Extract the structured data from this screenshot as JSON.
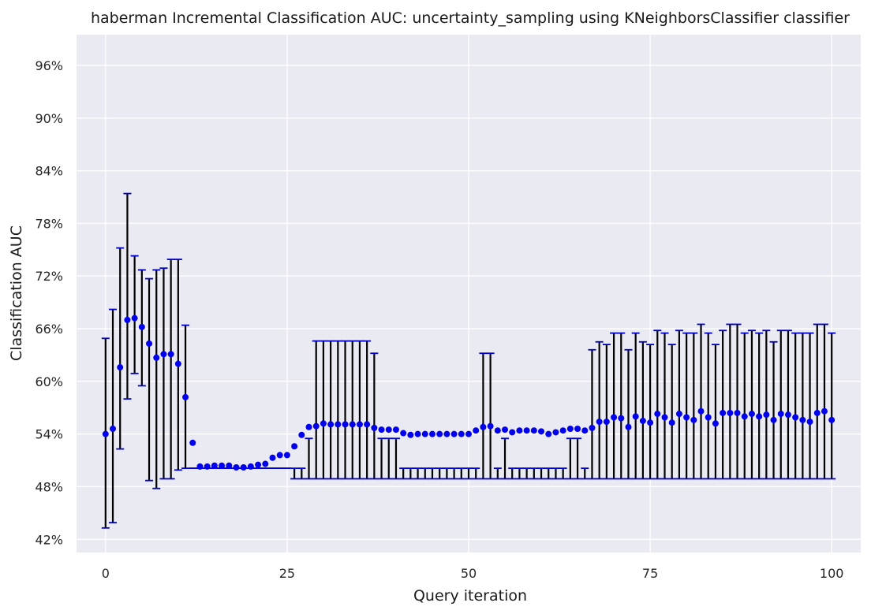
{
  "chart_data": {
    "type": "scatter",
    "title": "haberman Incremental Classification AUC: uncertainty_sampling using KNeighborsClassifier classifier",
    "xlabel": "Query iteration",
    "ylabel": "Classification AUC",
    "xlim": [
      -4,
      104
    ],
    "ylim": [
      40.5,
      99.5
    ],
    "xticks": [
      0,
      25,
      50,
      75,
      100
    ],
    "xtick_labels": [
      "0",
      "25",
      "50",
      "75",
      "100"
    ],
    "yticks": [
      42,
      48,
      54,
      60,
      66,
      72,
      78,
      84,
      90,
      96
    ],
    "ytick_labels": [
      "42%",
      "48%",
      "54%",
      "60%",
      "66%",
      "72%",
      "78%",
      "84%",
      "90%",
      "96%"
    ],
    "grid": true,
    "colors": {
      "background": "#eaeaf2",
      "points": "#0000ee",
      "error_bars": "#000000",
      "caps": "#0000cc"
    },
    "series": [
      {
        "x": [
          0,
          1,
          2,
          3,
          4,
          5,
          6,
          7,
          8,
          9,
          10,
          11,
          12,
          13,
          14,
          15,
          16,
          17,
          18,
          19,
          20,
          21,
          22,
          23,
          24,
          25,
          26,
          27,
          28,
          29,
          30,
          31,
          32,
          33,
          34,
          35,
          36,
          37,
          38,
          39,
          40,
          41,
          42,
          43,
          44,
          45,
          46,
          47,
          48,
          49,
          50,
          51,
          52,
          53,
          54,
          55,
          56,
          57,
          58,
          59,
          60,
          61,
          62,
          63,
          64,
          65,
          66,
          67,
          68,
          69,
          70,
          71,
          72,
          73,
          74,
          75,
          76,
          77,
          78,
          79,
          80,
          81,
          82,
          83,
          84,
          85,
          86,
          87,
          88,
          89,
          90,
          91,
          92,
          93,
          94,
          95,
          96,
          97,
          98,
          99,
          100
        ],
        "y": [
          54.0,
          54.6,
          61.6,
          67.0,
          67.2,
          66.2,
          64.3,
          62.7,
          63.1,
          63.1,
          62.0,
          58.2,
          53.0,
          50.3,
          50.3,
          50.4,
          50.4,
          50.4,
          50.2,
          50.2,
          50.3,
          50.5,
          50.6,
          51.3,
          51.6,
          51.6,
          52.6,
          53.9,
          54.8,
          54.9,
          55.2,
          55.1,
          55.1,
          55.1,
          55.1,
          55.1,
          55.1,
          54.7,
          54.5,
          54.5,
          54.5,
          54.1,
          53.9,
          54.0,
          54.0,
          54.0,
          54.0,
          54.0,
          54.0,
          54.0,
          54.0,
          54.4,
          54.8,
          54.9,
          54.4,
          54.5,
          54.2,
          54.4,
          54.4,
          54.4,
          54.3,
          54.0,
          54.2,
          54.4,
          54.6,
          54.6,
          54.4,
          54.7,
          55.4,
          55.4,
          55.9,
          55.8,
          54.8,
          56.0,
          55.5,
          55.3,
          56.3,
          55.9,
          55.3,
          56.3,
          55.9,
          55.6,
          56.6,
          55.9,
          55.2,
          56.4,
          56.4,
          56.4,
          56.0,
          56.3,
          56.0,
          56.2,
          55.6,
          56.3,
          56.2,
          55.9,
          55.6,
          55.4,
          56.4,
          56.6,
          55.6
        ],
        "y_low": [
          43.3,
          43.9,
          52.3,
          58.0,
          60.9,
          59.5,
          48.7,
          47.8,
          48.9,
          48.9,
          49.9,
          50.1,
          50.1,
          50.1,
          50.1,
          50.1,
          50.1,
          50.1,
          50.1,
          50.1,
          50.1,
          50.1,
          50.1,
          50.1,
          50.1,
          50.1,
          48.9,
          48.9,
          48.9,
          48.9,
          48.9,
          48.9,
          48.9,
          48.9,
          48.9,
          48.9,
          48.9,
          48.9,
          48.9,
          48.9,
          48.9,
          48.9,
          48.9,
          48.9,
          48.9,
          48.9,
          48.9,
          48.9,
          48.9,
          48.9,
          48.9,
          48.9,
          48.9,
          48.9,
          48.9,
          48.9,
          48.9,
          48.9,
          48.9,
          48.9,
          48.9,
          48.9,
          48.9,
          48.9,
          48.9,
          48.9,
          48.9,
          48.9,
          48.9,
          48.9,
          48.9,
          48.9,
          48.9,
          48.9,
          48.9,
          48.9,
          48.9,
          48.9,
          48.9,
          48.9,
          48.9,
          48.9,
          48.9,
          48.9,
          48.9,
          48.9,
          48.9,
          48.9,
          48.9,
          48.9,
          48.9,
          48.9,
          48.9,
          48.9,
          48.9,
          48.9,
          48.9,
          48.9,
          48.9,
          48.9,
          48.9
        ],
        "y_high": [
          64.9,
          68.2,
          75.2,
          81.4,
          74.3,
          72.7,
          71.7,
          72.7,
          72.9,
          73.9,
          73.9,
          66.4,
          50.1,
          50.1,
          50.1,
          50.1,
          50.1,
          50.1,
          50.1,
          50.1,
          50.1,
          50.1,
          50.1,
          50.1,
          50.1,
          50.1,
          50.1,
          50.1,
          53.5,
          64.6,
          64.6,
          64.6,
          64.6,
          64.6,
          64.6,
          64.6,
          64.6,
          63.2,
          53.5,
          53.5,
          53.5,
          50.1,
          50.1,
          50.1,
          50.1,
          50.1,
          50.1,
          50.1,
          50.1,
          50.1,
          50.1,
          50.1,
          63.2,
          63.2,
          50.1,
          53.5,
          50.1,
          50.1,
          50.1,
          50.1,
          50.1,
          50.1,
          50.1,
          50.1,
          53.5,
          53.5,
          50.1,
          63.6,
          64.5,
          64.2,
          65.5,
          65.5,
          63.6,
          65.5,
          64.5,
          64.2,
          65.8,
          65.5,
          64.2,
          65.8,
          65.5,
          65.5,
          66.5,
          65.5,
          64.2,
          65.8,
          66.5,
          66.5,
          65.5,
          65.8,
          65.5,
          65.8,
          64.5,
          65.8,
          65.8,
          65.5,
          65.5,
          65.5,
          66.5,
          66.5,
          65.5
        ]
      }
    ]
  }
}
